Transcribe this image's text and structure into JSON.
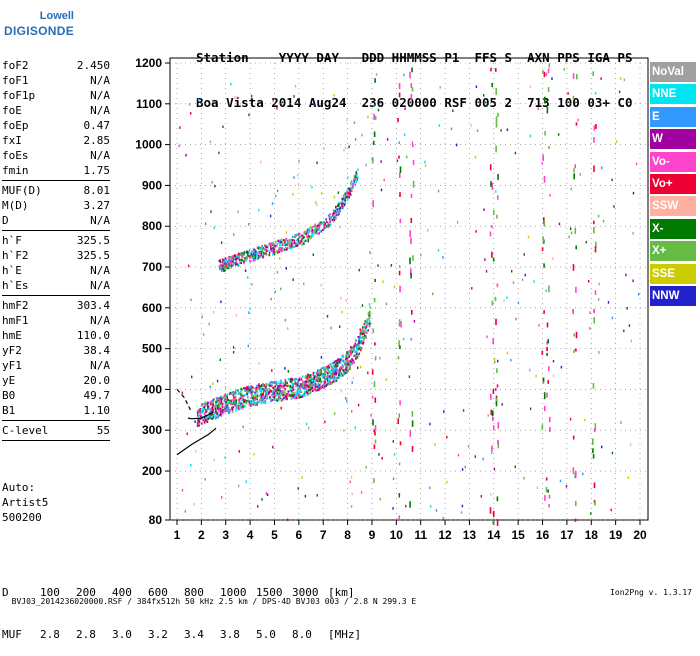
{
  "logo": {
    "line1": "Lowell",
    "line2": "DIGISONDE"
  },
  "header": {
    "labels": "Station    YYYY DAY   DDD HHMMSS P1  FFS S  AXN PPS IGA PS",
    "values": "Boa Vista 2014 Aug24  236 020000 RSF 005 2  713 100 03+ C0"
  },
  "params": [
    {
      "name": "foF2",
      "value": "2.450"
    },
    {
      "name": "foF1",
      "value": "N/A"
    },
    {
      "name": "foF1p",
      "value": "N/A"
    },
    {
      "name": "foE",
      "value": "N/A"
    },
    {
      "name": "foEp",
      "value": "0.47"
    },
    {
      "name": "fxI",
      "value": "2.85"
    },
    {
      "name": "foEs",
      "value": "N/A"
    },
    {
      "name": "fmin",
      "value": "1.75"
    },
    {
      "sep": true
    },
    {
      "name": "MUF(D)",
      "value": "8.01"
    },
    {
      "name": "M(D)",
      "value": "3.27"
    },
    {
      "name": "D",
      "value": "N/A"
    },
    {
      "sep": true
    },
    {
      "name": "h`F",
      "value": "325.5"
    },
    {
      "name": "h`F2",
      "value": "325.5"
    },
    {
      "name": "h`E",
      "value": "N/A"
    },
    {
      "name": "h`Es",
      "value": "N/A"
    },
    {
      "sep": true
    },
    {
      "name": "hmF2",
      "value": "303.4"
    },
    {
      "name": "hmF1",
      "value": "N/A"
    },
    {
      "name": "hmE",
      "value": "110.0"
    },
    {
      "name": "yF2",
      "value": "38.4"
    },
    {
      "name": "yF1",
      "value": "N/A"
    },
    {
      "name": "yE",
      "value": "20.0"
    },
    {
      "name": "B0",
      "value": "49.7"
    },
    {
      "name": "B1",
      "value": "1.10"
    },
    {
      "sep": true
    },
    {
      "name": "C-level",
      "value": "55"
    },
    {
      "sep": true
    }
  ],
  "auto": [
    "Auto:",
    "Artist5",
    "500200"
  ],
  "legend": [
    {
      "label": "NoVal",
      "color": "#a0a0a0"
    },
    {
      "label": "NNE",
      "color": "#00e6f0"
    },
    {
      "label": "E",
      "color": "#3399ff"
    },
    {
      "label": "W",
      "color": "#a000a0"
    },
    {
      "label": "Vo-",
      "color": "#ff44cc"
    },
    {
      "label": "Vo+",
      "color": "#ee0033"
    },
    {
      "label": "SSW",
      "color": "#ffb0a0"
    },
    {
      "label": "X-",
      "color": "#007a00"
    },
    {
      "label": "X+",
      "color": "#66bb44"
    },
    {
      "label": "SSE",
      "color": "#cccc00"
    },
    {
      "label": "NNW",
      "color": "#2222cc"
    }
  ],
  "muf_table": {
    "d_label": "D",
    "d_values": [
      "100",
      "200",
      "400",
      "600",
      "800",
      "1000",
      "1500",
      "3000"
    ],
    "d_unit": "[km]",
    "muf_label": "MUF",
    "muf_values": [
      "2.8",
      "2.8",
      "3.0",
      "3.2",
      "3.4",
      "3.8",
      "5.0",
      "8.0"
    ],
    "muf_unit": "[MHz]"
  },
  "footer": {
    "left": "BVJ03_2014236020000.RSF / 384fx512h 50 kHz 2.5 km / DPS-4D BVJ03 003 / 2.8 N 299.3 E",
    "right": "Ion2Png v. 1.3.17"
  },
  "chart_data": {
    "type": "scatter",
    "xlim": [
      1,
      20
    ],
    "ylim": [
      80,
      1200
    ],
    "xticks": [
      1,
      2,
      3,
      4,
      5,
      6,
      7,
      8,
      9,
      10,
      11,
      12,
      13,
      14,
      15,
      16,
      17,
      18,
      19,
      20
    ],
    "yticks": [
      80,
      200,
      300,
      400,
      500,
      600,
      700,
      800,
      900,
      1000,
      1100,
      1200
    ],
    "grid": true,
    "traces": [
      {
        "name": "F2 trace",
        "points": [
          [
            1.8,
            330
          ],
          [
            2.2,
            340
          ],
          [
            2.6,
            350
          ],
          [
            3.0,
            360
          ],
          [
            3.5,
            370
          ],
          [
            4.0,
            380
          ],
          [
            4.5,
            385
          ],
          [
            5.0,
            390
          ],
          [
            5.5,
            395
          ],
          [
            6.0,
            400
          ],
          [
            6.5,
            410
          ],
          [
            7.0,
            425
          ],
          [
            7.5,
            440
          ],
          [
            8.0,
            465
          ],
          [
            8.4,
            500
          ],
          [
            8.7,
            540
          ],
          [
            8.9,
            575
          ]
        ]
      },
      {
        "name": "F2 multiple echo",
        "points": [
          [
            2.7,
            700
          ],
          [
            3.2,
            710
          ],
          [
            3.7,
            720
          ],
          [
            4.2,
            730
          ],
          [
            4.7,
            740
          ],
          [
            5.2,
            750
          ],
          [
            5.7,
            760
          ],
          [
            6.2,
            770
          ],
          [
            6.7,
            790
          ],
          [
            7.2,
            810
          ],
          [
            7.6,
            840
          ],
          [
            7.9,
            870
          ],
          [
            8.2,
            900
          ],
          [
            8.4,
            930
          ]
        ]
      }
    ],
    "profile": [
      [
        1.45,
        330
      ],
      [
        1.6,
        328
      ],
      [
        2.0,
        330
      ],
      [
        2.3,
        338
      ],
      [
        2.5,
        345
      ]
    ],
    "profile_tail": [
      [
        1.0,
        240
      ],
      [
        1.6,
        265
      ],
      [
        2.3,
        290
      ],
      [
        2.6,
        305
      ]
    ]
  }
}
